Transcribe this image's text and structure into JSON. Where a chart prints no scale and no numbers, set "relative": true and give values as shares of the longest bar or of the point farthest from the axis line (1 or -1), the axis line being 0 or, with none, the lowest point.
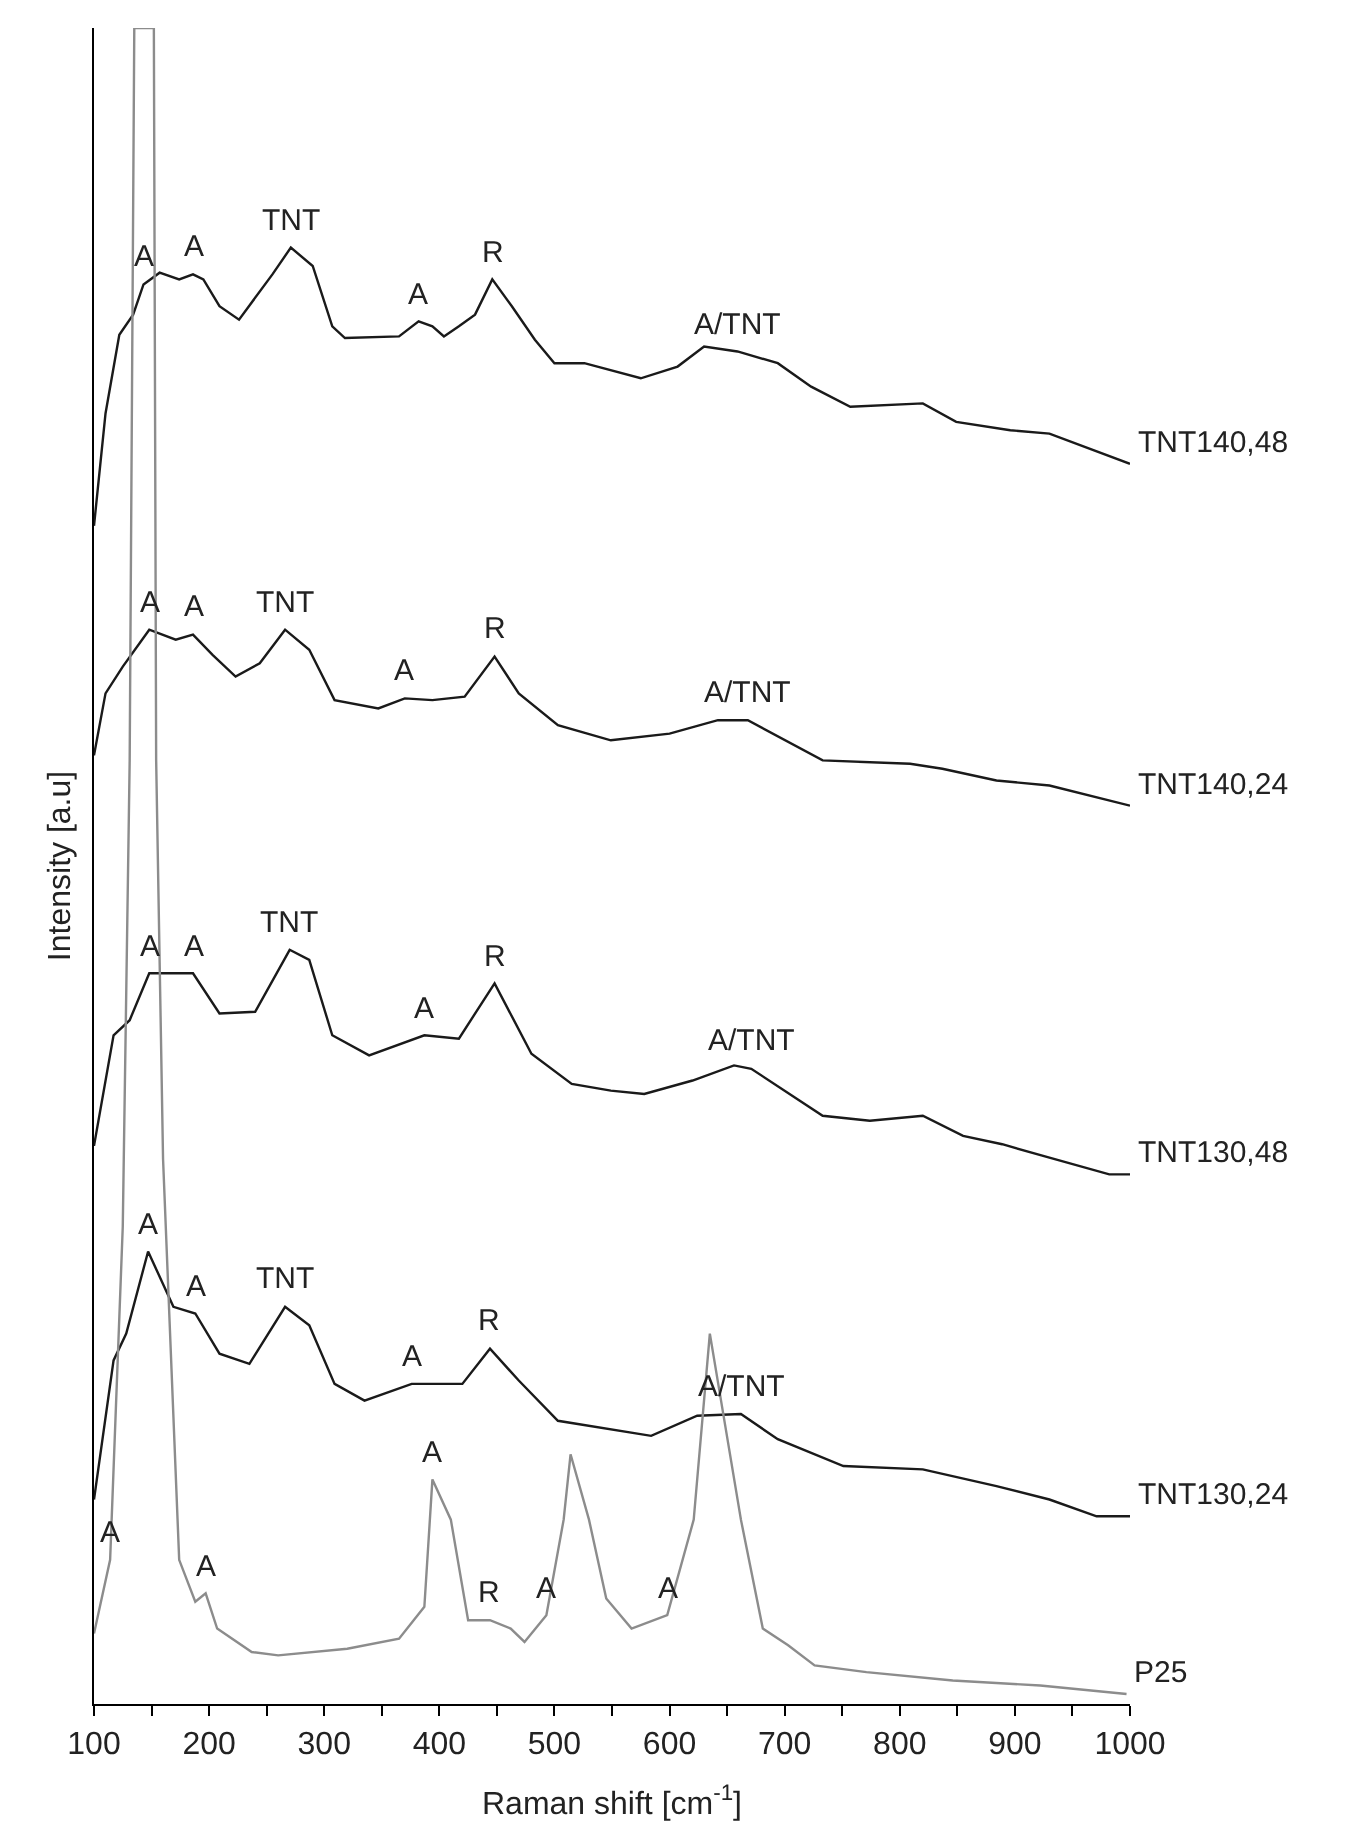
{
  "chart_data": {
    "type": "line",
    "relative": true,
    "xlabel": "Raman shift [cm$^{-1}$]",
    "ylabel": "Intensity [a.u]",
    "xlim": [
      100,
      1000
    ],
    "xticks": [
      100,
      {
        "value": 150,
        "label": null
      },
      200,
      {
        "value": 250,
        "label": null
      },
      300,
      {
        "value": 350,
        "label": null
      },
      400,
      {
        "value": 450,
        "label": null
      },
      500,
      {
        "value": 550,
        "label": null
      },
      600,
      {
        "value": 650,
        "label": null
      },
      700,
      {
        "value": 750,
        "label": null
      },
      800,
      {
        "value": 850,
        "label": null
      },
      900,
      {
        "value": 950,
        "label": null
      },
      1000
    ],
    "legend": false,
    "marker": "none",
    "line_style": "solid",
    "series": [
      {
        "name": "TNT140,48",
        "color": "#1a1a1a",
        "x": [
          100,
          110,
          122,
          134,
          143,
          157,
          174,
          186,
          195,
          209,
          226,
          255,
          271,
          290,
          307,
          318,
          365,
          382,
          394,
          404,
          417,
          431,
          446,
          463,
          483,
          500,
          526,
          575,
          607,
          630,
          659,
          694,
          723,
          757,
          820,
          849,
          896,
          930,
          1000
        ],
        "values": [
          0.703,
          0.77,
          0.817,
          0.829,
          0.847,
          0.854,
          0.85,
          0.853,
          0.85,
          0.834,
          0.826,
          0.853,
          0.869,
          0.858,
          0.822,
          0.815,
          0.816,
          0.825,
          0.822,
          0.816,
          0.822,
          0.829,
          0.85,
          0.834,
          0.814,
          0.8,
          0.8,
          0.791,
          0.798,
          0.81,
          0.807,
          0.8,
          0.786,
          0.774,
          0.776,
          0.765,
          0.76,
          0.758,
          0.74
        ]
      },
      {
        "name": "TNT140,24",
        "color": "#1a1a1a",
        "x": [
          100,
          110,
          125,
          148,
          171,
          186,
          203,
          223,
          244,
          266,
          287,
          309,
          347,
          370,
          394,
          422,
          448,
          469,
          503,
          549,
          600,
          642,
          668,
          733,
          809,
          837,
          884,
          930,
          1000
        ],
        "values": [
          0.566,
          0.603,
          0.619,
          0.641,
          0.635,
          0.638,
          0.626,
          0.613,
          0.621,
          0.641,
          0.629,
          0.599,
          0.594,
          0.6,
          0.599,
          0.601,
          0.625,
          0.603,
          0.584,
          0.575,
          0.579,
          0.587,
          0.587,
          0.563,
          0.561,
          0.558,
          0.551,
          0.548,
          0.536
        ]
      },
      {
        "name": "TNT130,48",
        "color": "#1a1a1a",
        "x": [
          100,
          117,
          131,
          148,
          186,
          209,
          240,
          270,
          287,
          307,
          339,
          387,
          417,
          448,
          480,
          515,
          549,
          578,
          620,
          656,
          671,
          733,
          774,
          820,
          855,
          889,
          930,
          982,
          1000
        ],
        "values": [
          0.333,
          0.399,
          0.408,
          0.436,
          0.436,
          0.412,
          0.413,
          0.45,
          0.444,
          0.399,
          0.387,
          0.399,
          0.397,
          0.43,
          0.388,
          0.37,
          0.366,
          0.364,
          0.372,
          0.381,
          0.379,
          0.351,
          0.348,
          0.351,
          0.339,
          0.334,
          0.326,
          0.316,
          0.316
        ]
      },
      {
        "name": "TNT130,24",
        "color": "#1a1a1a",
        "x": [
          100,
          117,
          128,
          147,
          169,
          188,
          209,
          235,
          266,
          287,
          309,
          335,
          376,
          420,
          444,
          469,
          503,
          584,
          624,
          662,
          694,
          751,
          820,
          884,
          930,
          971,
          1000
        ],
        "values": [
          0.122,
          0.205,
          0.221,
          0.27,
          0.237,
          0.233,
          0.209,
          0.203,
          0.237,
          0.226,
          0.191,
          0.181,
          0.191,
          0.191,
          0.212,
          0.193,
          0.169,
          0.16,
          0.172,
          0.173,
          0.158,
          0.142,
          0.14,
          0.13,
          0.122,
          0.112,
          0.112
        ]
      },
      {
        "name": "P25",
        "color": "#8c8c8c",
        "x": [
          100,
          114,
          125,
          131,
          135,
          152,
          154,
          160,
          174,
          188,
          197,
          207,
          237,
          260,
          320,
          365,
          387,
          394,
          410,
          425,
          444,
          462,
          474,
          493,
          508,
          514,
          530,
          545,
          567,
          598,
          621,
          635,
          662,
          681,
          703,
          726,
          771,
          846,
          922,
          997
        ],
        "values": [
          0.042,
          0.086,
          0.285,
          0.563,
          1.0,
          1.0,
          0.563,
          0.325,
          0.086,
          0.061,
          0.066,
          0.045,
          0.031,
          0.029,
          0.033,
          0.039,
          0.058,
          0.134,
          0.11,
          0.05,
          0.05,
          0.045,
          0.037,
          0.053,
          0.11,
          0.149,
          0.11,
          0.063,
          0.045,
          0.053,
          0.11,
          0.221,
          0.11,
          0.045,
          0.035,
          0.023,
          0.019,
          0.014,
          0.011,
          0.006
        ]
      }
    ],
    "annotations": [
      {
        "text": "A",
        "x": 143,
        "y": 0.847
      },
      {
        "text": "A",
        "x": 186,
        "y": 0.853
      },
      {
        "text": "TNT",
        "x": 271,
        "y": 0.869
      },
      {
        "text": "A",
        "x": 382,
        "y": 0.825
      },
      {
        "text": "R",
        "x": 446,
        "y": 0.85
      },
      {
        "text": "A/TNT",
        "x": 659,
        "y": 0.807
      },
      {
        "text": "A",
        "x": 148,
        "y": 0.641
      },
      {
        "text": "A",
        "x": 186,
        "y": 0.638
      },
      {
        "text": "TNT",
        "x": 266,
        "y": 0.641
      },
      {
        "text": "A",
        "x": 370,
        "y": 0.6
      },
      {
        "text": "R",
        "x": 448,
        "y": 0.625
      },
      {
        "text": "A/TNT",
        "x": 668,
        "y": 0.587
      },
      {
        "text": "A",
        "x": 148,
        "y": 0.436
      },
      {
        "text": "A",
        "x": 186,
        "y": 0.436
      },
      {
        "text": "TNT",
        "x": 270,
        "y": 0.45
      },
      {
        "text": "A",
        "x": 387,
        "y": 0.399
      },
      {
        "text": "R",
        "x": 448,
        "y": 0.43
      },
      {
        "text": "A/TNT",
        "x": 671,
        "y": 0.379
      },
      {
        "text": "A",
        "x": 147,
        "y": 0.27
      },
      {
        "text": "A",
        "x": 188,
        "y": 0.233
      },
      {
        "text": "TNT",
        "x": 266,
        "y": 0.237
      },
      {
        "text": "A",
        "x": 376,
        "y": 0.191
      },
      {
        "text": "R",
        "x": 444,
        "y": 0.212
      },
      {
        "text": "A/TNT",
        "x": 662,
        "y": 0.173
      },
      {
        "text": "A",
        "x": 114,
        "y": 0.086
      },
      {
        "text": "A",
        "x": 197,
        "y": 0.066
      },
      {
        "text": "A",
        "x": 394,
        "y": 0.134
      },
      {
        "text": "R",
        "x": 444,
        "y": 0.05
      },
      {
        "text": "A",
        "x": 493,
        "y": 0.053
      },
      {
        "text": "A",
        "x": 598,
        "y": 0.053
      }
    ]
  }
}
